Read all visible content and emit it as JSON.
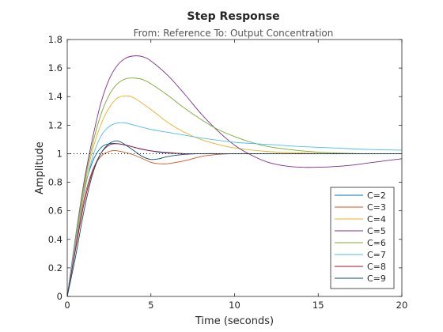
{
  "chart_data": {
    "type": "line",
    "title": "Step Response",
    "subtitle": "From: Reference  To: Output Concentration",
    "xlabel": "Time (seconds)",
    "ylabel": "Amplitude",
    "xlim": [
      0,
      20
    ],
    "ylim": [
      0,
      1.8
    ],
    "xticks": [
      "0",
      "5",
      "10",
      "15",
      "20"
    ],
    "yticks": [
      "0",
      "0.2",
      "0.4",
      "0.6",
      "0.8",
      "1",
      "1.2",
      "1.4",
      "1.6",
      "1.8"
    ],
    "reference_line": 1.0,
    "grid": false,
    "legend_position": "bottom-right",
    "series": [
      {
        "name": "C=2",
        "color": "#0072BD",
        "x": [
          0,
          0.5,
          1,
          1.5,
          2,
          2.5,
          3,
          3.5,
          4,
          4.5,
          5,
          5.5,
          6,
          7,
          8,
          10,
          14,
          20
        ],
        "y": [
          0,
          0.4,
          0.74,
          0.94,
          1.04,
          1.07,
          1.07,
          1.06,
          1.045,
          1.03,
          1.02,
          1.01,
          1.005,
          1.0,
          1.0,
          1.0,
          1.0,
          1.0
        ]
      },
      {
        "name": "C=3",
        "color": "#D95319",
        "x": [
          0,
          0.5,
          1,
          1.5,
          2,
          2.5,
          3,
          4,
          5,
          5.5,
          6,
          7,
          8,
          9,
          10,
          12,
          14,
          20
        ],
        "y": [
          0,
          0.35,
          0.68,
          0.88,
          0.98,
          1.015,
          1.02,
          0.99,
          0.94,
          0.93,
          0.93,
          0.95,
          0.98,
          0.995,
          1.0,
          1.0,
          1.0,
          1.0
        ]
      },
      {
        "name": "C=4",
        "color": "#EDB120",
        "x": [
          0,
          0.5,
          1,
          1.5,
          2,
          2.5,
          3,
          3.5,
          4,
          5,
          6,
          7,
          8,
          9,
          10,
          12,
          14,
          16,
          20
        ],
        "y": [
          0,
          0.4,
          0.75,
          1.02,
          1.2,
          1.32,
          1.39,
          1.405,
          1.39,
          1.31,
          1.22,
          1.15,
          1.1,
          1.065,
          1.04,
          1.015,
          1.005,
          1.0,
          1.0
        ]
      },
      {
        "name": "C=5",
        "color": "#7E2F8E",
        "x": [
          0,
          0.5,
          1,
          1.5,
          2,
          2.5,
          3,
          3.5,
          4,
          4.5,
          5,
          6,
          7,
          8,
          9,
          10,
          11,
          12,
          13,
          14,
          15,
          16,
          17,
          18,
          19,
          20
        ],
        "y": [
          0,
          0.42,
          0.8,
          1.1,
          1.35,
          1.52,
          1.62,
          1.67,
          1.685,
          1.68,
          1.65,
          1.55,
          1.42,
          1.28,
          1.16,
          1.06,
          0.99,
          0.94,
          0.915,
          0.905,
          0.905,
          0.91,
          0.92,
          0.935,
          0.95,
          0.965
        ]
      },
      {
        "name": "C=6",
        "color": "#77AC30",
        "x": [
          0,
          0.5,
          1,
          1.5,
          2,
          2.5,
          3,
          3.5,
          4,
          4.5,
          5,
          6,
          7,
          8,
          9,
          10,
          11,
          12,
          14,
          16,
          18,
          20
        ],
        "y": [
          0,
          0.41,
          0.78,
          1.06,
          1.27,
          1.41,
          1.49,
          1.525,
          1.53,
          1.52,
          1.49,
          1.41,
          1.32,
          1.24,
          1.17,
          1.12,
          1.08,
          1.05,
          1.02,
          1.005,
          1.0,
          1.0
        ]
      },
      {
        "name": "C=7",
        "color": "#4DBEEE",
        "x": [
          0,
          0.5,
          1,
          1.5,
          2,
          2.5,
          3,
          3.5,
          4,
          4.5,
          5,
          6,
          7,
          8,
          10,
          12,
          14,
          16,
          18,
          20
        ],
        "y": [
          0,
          0.38,
          0.72,
          0.97,
          1.12,
          1.19,
          1.215,
          1.215,
          1.2,
          1.185,
          1.17,
          1.15,
          1.13,
          1.11,
          1.08,
          1.065,
          1.05,
          1.04,
          1.03,
          1.025
        ]
      },
      {
        "name": "C=8",
        "color": "#A2142F",
        "x": [
          0,
          0.5,
          1,
          1.5,
          2,
          2.5,
          3,
          3.5,
          4,
          5,
          6,
          7,
          8,
          10,
          14,
          20
        ],
        "y": [
          0,
          0.33,
          0.65,
          0.87,
          1.0,
          1.06,
          1.07,
          1.06,
          1.045,
          1.02,
          1.008,
          1.0,
          1.0,
          1.0,
          1.0,
          1.0
        ]
      },
      {
        "name": "C=9",
        "color": "#0E4C6B",
        "x": [
          0,
          0.5,
          1,
          1.5,
          2,
          2.5,
          3,
          3.5,
          4,
          4.5,
          5,
          5.5,
          6,
          7,
          8,
          10,
          14,
          20
        ],
        "y": [
          0,
          0.28,
          0.6,
          0.85,
          1.0,
          1.07,
          1.09,
          1.06,
          1.02,
          0.98,
          0.96,
          0.965,
          0.98,
          0.995,
          1.0,
          1.0,
          1.0,
          1.0
        ]
      }
    ]
  }
}
